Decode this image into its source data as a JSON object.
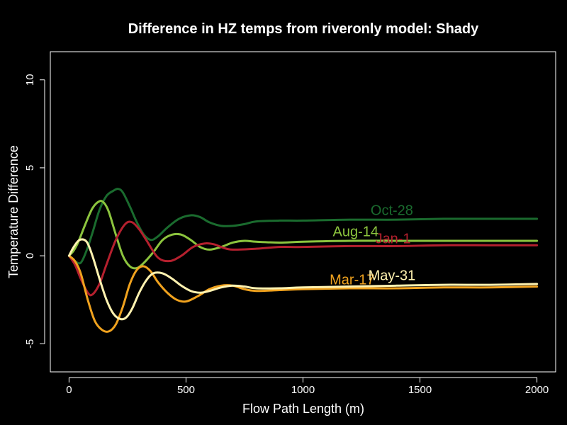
{
  "chart_data": {
    "type": "line",
    "title": "Difference in HZ temps from riveronly model: Shady",
    "xlabel": "Flow Path Length (m)",
    "ylabel": "Temperature Difference",
    "xlim": [
      -80,
      2080
    ],
    "ylim": [
      -6.6,
      11.6
    ],
    "xticks": [
      0,
      500,
      1000,
      1500,
      2000
    ],
    "yticks": [
      -5,
      0,
      5,
      10
    ],
    "grid": false,
    "legend": "none",
    "background": "#000000",
    "foreground": "#ffffff",
    "series": [
      {
        "name": "Oct-28",
        "color": "#1a6b2e",
        "label_at": [
          1380,
          2.6
        ],
        "x": [
          0,
          25,
          50,
          75,
          100,
          130,
          160,
          190,
          210,
          230,
          260,
          290,
          320,
          350,
          380,
          420,
          470,
          520,
          560,
          600,
          650,
          700,
          750,
          800,
          900,
          1000,
          1200,
          1400,
          1600,
          1800,
          2000
        ],
        "y": [
          0,
          -0.3,
          -0.4,
          0.3,
          1.3,
          2.6,
          3.4,
          3.7,
          3.8,
          3.6,
          2.8,
          1.9,
          1.2,
          0.9,
          1.1,
          1.6,
          2.1,
          2.3,
          2.2,
          1.9,
          1.7,
          1.7,
          1.8,
          1.95,
          2.0,
          2.0,
          2.05,
          2.05,
          2.1,
          2.1,
          2.1
        ]
      },
      {
        "name": "Aug-14",
        "color": "#8cc43e",
        "label_at": [
          1225,
          1.4
        ],
        "x": [
          0,
          20,
          40,
          70,
          100,
          130,
          150,
          170,
          200,
          230,
          260,
          290,
          320,
          360,
          400,
          440,
          480,
          520,
          560,
          600,
          650,
          700,
          750,
          800,
          900,
          1000,
          1200,
          1400,
          1600,
          1800,
          2000
        ],
        "y": [
          0,
          0.3,
          0.8,
          1.8,
          2.7,
          3.1,
          3.0,
          2.5,
          1.2,
          0.0,
          -0.6,
          -0.7,
          -0.4,
          0.2,
          0.9,
          1.2,
          1.2,
          0.9,
          0.5,
          0.35,
          0.5,
          0.75,
          0.85,
          0.8,
          0.75,
          0.8,
          0.85,
          0.85,
          0.85,
          0.85,
          0.85
        ]
      },
      {
        "name": "Jan-1",
        "color": "#b5202e",
        "label_at": [
          1385,
          1.0
        ],
        "x": [
          0,
          25,
          50,
          80,
          100,
          130,
          160,
          200,
          240,
          270,
          300,
          330,
          380,
          430,
          480,
          530,
          580,
          620,
          660,
          700,
          800,
          900,
          1000,
          1200,
          1400,
          1600,
          1800,
          2000
        ],
        "y": [
          0,
          -0.5,
          -1.3,
          -2.1,
          -2.2,
          -1.6,
          -0.5,
          0.9,
          1.8,
          1.9,
          1.5,
          0.9,
          -0.1,
          -0.3,
          0.0,
          0.5,
          0.7,
          0.65,
          0.45,
          0.35,
          0.4,
          0.5,
          0.5,
          0.55,
          0.55,
          0.6,
          0.6,
          0.6
        ]
      },
      {
        "name": "Mar-17",
        "color": "#f0a21e",
        "label_at": [
          1210,
          -1.35
        ],
        "x": [
          0,
          25,
          50,
          80,
          110,
          140,
          170,
          200,
          230,
          260,
          290,
          320,
          350,
          380,
          420,
          460,
          500,
          550,
          600,
          650,
          700,
          750,
          800,
          900,
          1000,
          1200,
          1400,
          1600,
          1800,
          2000
        ],
        "y": [
          0,
          -0.3,
          -1.0,
          -2.5,
          -3.7,
          -4.2,
          -4.3,
          -3.9,
          -2.9,
          -1.6,
          -0.8,
          -0.6,
          -0.9,
          -1.5,
          -2.1,
          -2.5,
          -2.6,
          -2.3,
          -1.9,
          -1.7,
          -1.7,
          -1.9,
          -2.0,
          -1.95,
          -1.9,
          -1.85,
          -1.85,
          -1.8,
          -1.8,
          -1.75
        ]
      },
      {
        "name": "May-31",
        "color": "#fff2b0",
        "label_at": [
          1380,
          -1.1
        ],
        "x": [
          0,
          20,
          45,
          75,
          100,
          130,
          160,
          190,
          220,
          245,
          270,
          300,
          330,
          360,
          400,
          440,
          480,
          520,
          560,
          600,
          650,
          700,
          750,
          800,
          900,
          1000,
          1200,
          1400,
          1600,
          1800,
          2000
        ],
        "y": [
          0,
          0.5,
          0.9,
          0.8,
          0.0,
          -1.3,
          -2.5,
          -3.3,
          -3.6,
          -3.5,
          -3.0,
          -2.1,
          -1.4,
          -1.0,
          -1.0,
          -1.3,
          -1.7,
          -2.0,
          -2.1,
          -2.0,
          -1.8,
          -1.7,
          -1.75,
          -1.85,
          -1.85,
          -1.8,
          -1.75,
          -1.7,
          -1.65,
          -1.65,
          -1.6
        ]
      }
    ]
  }
}
